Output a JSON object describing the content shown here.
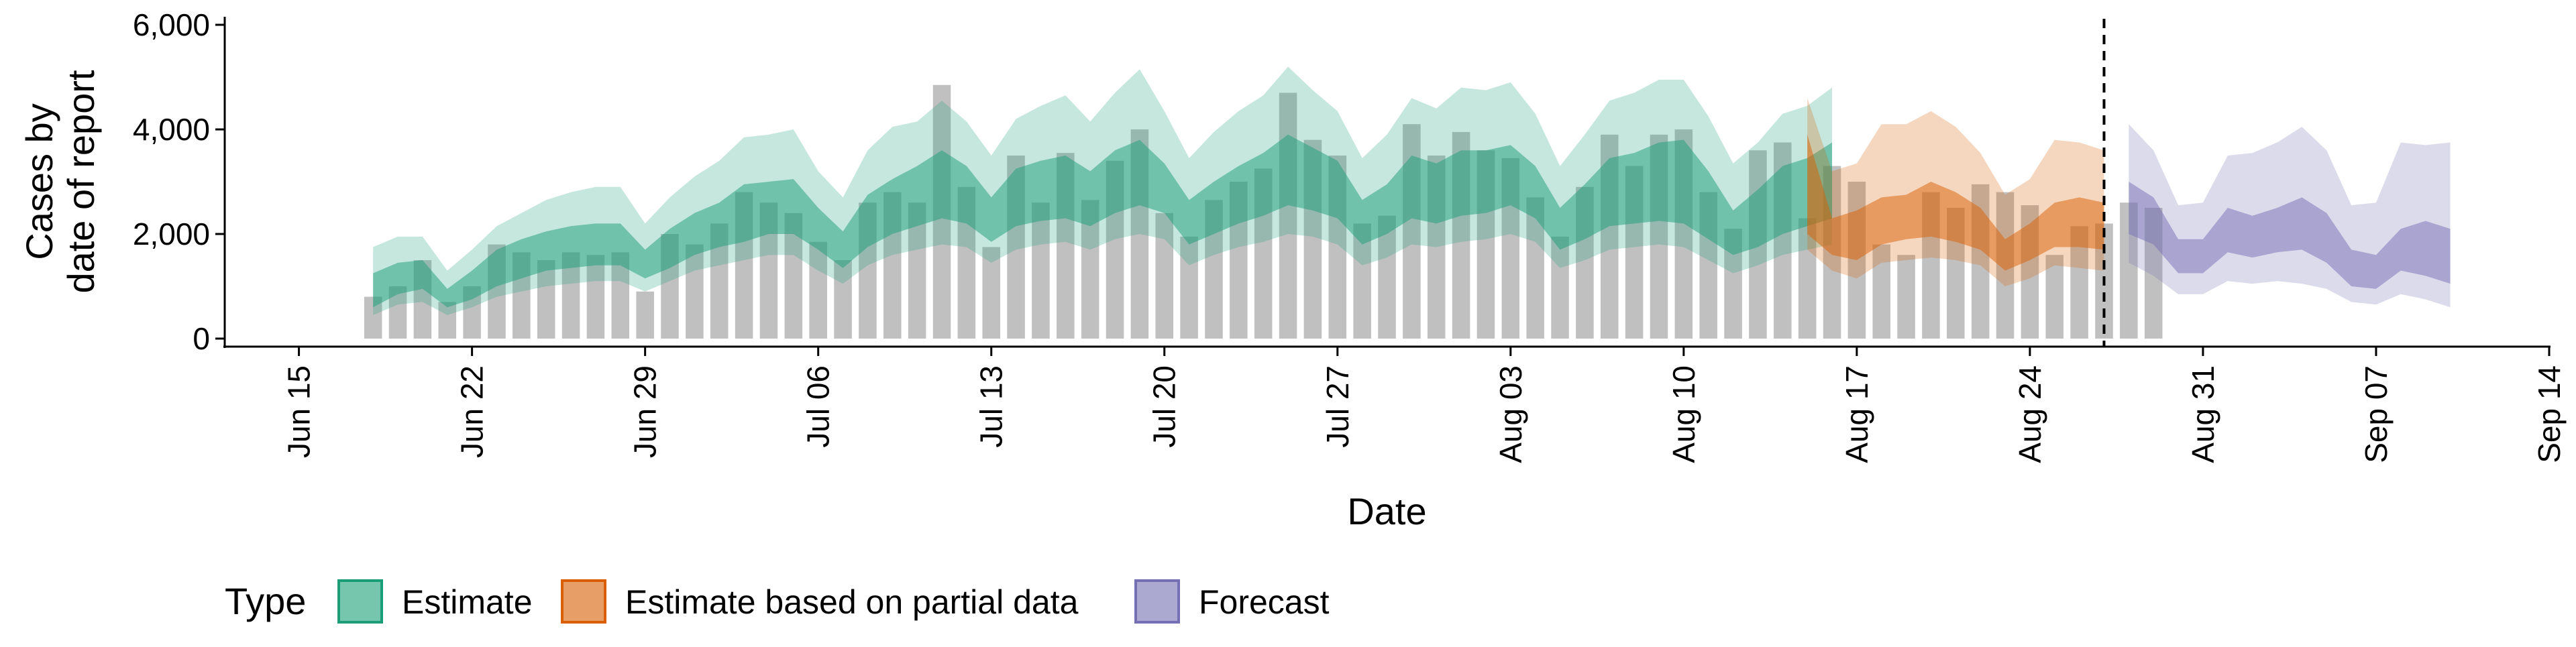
{
  "chart_data": {
    "type": "bar",
    "title": "",
    "xlabel": "Date",
    "ylabel": [
      "Cases by",
      "date of report"
    ],
    "ylim": [
      0,
      6000
    ],
    "yticks": [
      0,
      2000,
      4000,
      6000
    ],
    "ytick_labels": [
      "0",
      "2,000",
      "4,000",
      "6,000"
    ],
    "xlim": [
      "2020-06-12",
      "2020-09-14"
    ],
    "xticks": [
      "2020-06-15",
      "2020-06-22",
      "2020-06-29",
      "2020-07-06",
      "2020-07-13",
      "2020-07-20",
      "2020-07-27",
      "2020-08-03",
      "2020-08-10",
      "2020-08-17",
      "2020-08-24",
      "2020-08-31",
      "2020-09-07",
      "2020-09-14"
    ],
    "xtick_labels": [
      "Jun 15",
      "Jun 22",
      "Jun 29",
      "Jul 06",
      "Jul 13",
      "Jul 20",
      "Jul 27",
      "Aug 03",
      "Aug 10",
      "Aug 17",
      "Aug 24",
      "Aug 31",
      "Sep 07",
      "Sep 14"
    ],
    "grid": false,
    "legend_position": "bottom",
    "legend_title": "Type",
    "vline_date": "2020-08-27",
    "colors": {
      "bars": "#9e9e9e",
      "estimate": "#1b9e77",
      "partial": "#d95f02",
      "forecast": "#7570b3",
      "vline": "#000000"
    },
    "bars": {
      "start_date": "2020-06-18",
      "values": [
        800,
        1000,
        1500,
        700,
        1000,
        1800,
        1650,
        1500,
        1650,
        1600,
        1650,
        900,
        2000,
        1800,
        2200,
        2800,
        2600,
        2400,
        1850,
        1500,
        2600,
        2800,
        2600,
        4850,
        2900,
        1750,
        3500,
        2600,
        3550,
        2650,
        3400,
        4000,
        2400,
        1950,
        2650,
        3000,
        3250,
        4700,
        3800,
        3500,
        2200,
        2350,
        4100,
        3500,
        3950,
        3600,
        3450,
        2700,
        1950,
        2900,
        3900,
        3300,
        3900,
        4000,
        2800,
        2100,
        3600,
        3750,
        2300,
        3300,
        3000,
        1800,
        1600,
        2800,
        2500,
        2950,
        2800,
        2550,
        1600,
        2150,
        2200,
        2600,
        2500
      ]
    },
    "series": [
      {
        "name": "Estimate",
        "color": "#1b9e77",
        "start_date": "2020-06-18",
        "outer_lower": [
          450,
          650,
          700,
          450,
          600,
          800,
          900,
          1000,
          1050,
          1100,
          1100,
          900,
          1100,
          1300,
          1400,
          1500,
          1600,
          1600,
          1300,
          1050,
          1400,
          1600,
          1700,
          1800,
          1750,
          1450,
          1700,
          1800,
          1850,
          1700,
          1900,
          2000,
          1900,
          1400,
          1600,
          1750,
          1850,
          2000,
          1950,
          1800,
          1400,
          1550,
          1800,
          1750,
          1850,
          1900,
          2000,
          1850,
          1350,
          1500,
          1700,
          1750,
          1800,
          1750,
          1500,
          1250,
          1400,
          1600,
          1700,
          1800
        ],
        "inner_lower": [
          600,
          850,
          950,
          600,
          750,
          1000,
          1150,
          1300,
          1350,
          1400,
          1400,
          1150,
          1350,
          1600,
          1750,
          1850,
          2000,
          2000,
          1700,
          1350,
          1750,
          2000,
          2150,
          2300,
          2200,
          1850,
          2150,
          2250,
          2300,
          2150,
          2400,
          2550,
          2400,
          1800,
          2000,
          2200,
          2350,
          2550,
          2450,
          2300,
          1800,
          2000,
          2300,
          2200,
          2350,
          2400,
          2550,
          2300,
          1700,
          1900,
          2150,
          2200,
          2250,
          2200,
          1900,
          1600,
          1750,
          2000,
          2150,
          2300
        ],
        "inner_upper": [
          1250,
          1450,
          1500,
          950,
          1300,
          1700,
          1900,
          2050,
          2150,
          2200,
          2200,
          1700,
          2100,
          2400,
          2600,
          2950,
          3000,
          3050,
          2500,
          2050,
          2750,
          3050,
          3300,
          3600,
          3300,
          2700,
          3250,
          3400,
          3500,
          3200,
          3600,
          3800,
          3350,
          2650,
          3000,
          3300,
          3550,
          3900,
          3650,
          3400,
          2650,
          2950,
          3500,
          3350,
          3600,
          3600,
          3700,
          3300,
          2500,
          2950,
          3450,
          3550,
          3750,
          3800,
          3200,
          2450,
          2850,
          3300,
          3450,
          3750
        ],
        "outer_upper": [
          1750,
          1950,
          1950,
          1300,
          1700,
          2150,
          2400,
          2650,
          2800,
          2900,
          2900,
          2200,
          2700,
          3100,
          3400,
          3850,
          3900,
          4000,
          3200,
          2700,
          3600,
          4050,
          4150,
          4550,
          4150,
          3500,
          4200,
          4450,
          4650,
          4150,
          4700,
          5150,
          4350,
          3450,
          3950,
          4350,
          4650,
          5200,
          4750,
          4350,
          3450,
          3900,
          4600,
          4400,
          4800,
          4750,
          4900,
          4300,
          3300,
          3900,
          4550,
          4700,
          4950,
          4950,
          4250,
          3350,
          3750,
          4300,
          4450,
          4800
        ]
      },
      {
        "name": "Estimate based on partial data",
        "color": "#d95f02",
        "start_date": "2020-08-15",
        "outer_lower": [
          1700,
          1300,
          1150,
          1450,
          1500,
          1550,
          1500,
          1400,
          1000,
          1150,
          1400,
          1350,
          1300
        ],
        "inner_lower": [
          2000,
          1600,
          1500,
          1800,
          1900,
          1950,
          1850,
          1700,
          1300,
          1500,
          1750,
          1750,
          1700
        ],
        "inner_upper": [
          3900,
          2300,
          2450,
          2700,
          2750,
          3000,
          2800,
          2500,
          1900,
          2200,
          2600,
          2700,
          2600
        ],
        "outer_upper": [
          4600,
          3200,
          3350,
          4100,
          4100,
          4350,
          4050,
          3550,
          2750,
          3050,
          3800,
          3750,
          3600
        ]
      },
      {
        "name": "Forecast",
        "color": "#7570b3",
        "start_date": "2020-08-28",
        "outer_lower": [
          1450,
          1200,
          850,
          850,
          1100,
          1050,
          1100,
          1050,
          950,
          700,
          650,
          850,
          750,
          600
        ],
        "inner_lower": [
          2000,
          1800,
          1250,
          1250,
          1650,
          1550,
          1650,
          1700,
          1450,
          1000,
          950,
          1300,
          1200,
          1050
        ],
        "inner_upper": [
          3000,
          2700,
          1900,
          1900,
          2500,
          2350,
          2500,
          2700,
          2400,
          1700,
          1600,
          2100,
          2250,
          2100
        ],
        "outer_upper": [
          4100,
          3600,
          2550,
          2600,
          3500,
          3550,
          3750,
          4050,
          3600,
          2550,
          2600,
          3750,
          3700,
          3750
        ]
      }
    ],
    "legend_entries": [
      "Estimate",
      "Estimate based on partial data",
      "Forecast"
    ]
  }
}
